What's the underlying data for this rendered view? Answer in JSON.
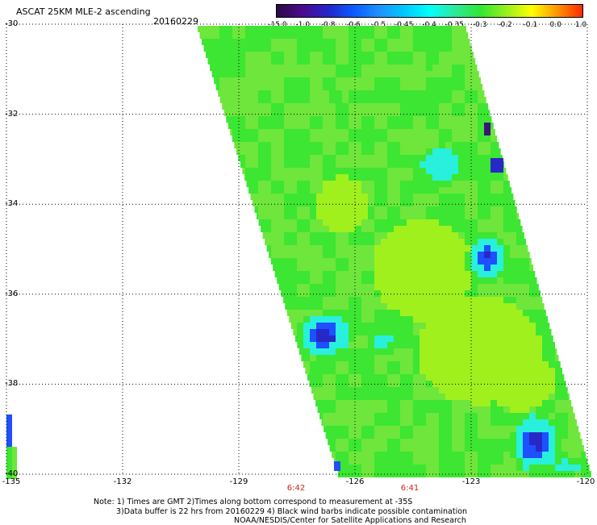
{
  "header": {
    "title": "ASCAT 25KM MLE-2 ascending",
    "date": "20160229"
  },
  "colorbar": {
    "labels": [
      "-15.0",
      "-1.0",
      "-0.8",
      "-0.6",
      "-0.5",
      "-0.45",
      "-0.4",
      "-0.35",
      "-0.3",
      "-0.2",
      "-0.1",
      "0.0",
      "1.0"
    ],
    "colors": [
      "#2a0a45",
      "#4b0a8c",
      "#2424c8",
      "#0a5aff",
      "#1e90ff",
      "#00c8ff",
      "#00ffff",
      "#2ee89a",
      "#32e632",
      "#96f01e",
      "#ffff00",
      "#ff9600",
      "#ff2800"
    ]
  },
  "map": {
    "lat_labels": [
      "-30",
      "-32",
      "-34",
      "-36",
      "-38",
      "-40"
    ],
    "lon_labels": [
      "-135",
      "-132",
      "-129",
      "-126",
      "-123",
      "-120"
    ],
    "time_labels": [
      "6:42",
      "6:41"
    ],
    "colors": {
      "green": "#3ce632",
      "lime": "#a0f01e",
      "light_green": "#6ee63c",
      "cyan": "#28f0dc",
      "blue": "#1e50ff",
      "deep_blue": "#2828c8",
      "purple": "#3c1478"
    }
  },
  "footer": {
    "line1": "Note: 1) Times are GMT 2)Times along bottom correspond to measurement at -35S",
    "line2": "3)Data buffer is 22 hrs from 20160229 4) Black wind barbs indicate possible contamination",
    "line3": "NOAA/NESDIS/Center for Satellite Applications and Research"
  }
}
